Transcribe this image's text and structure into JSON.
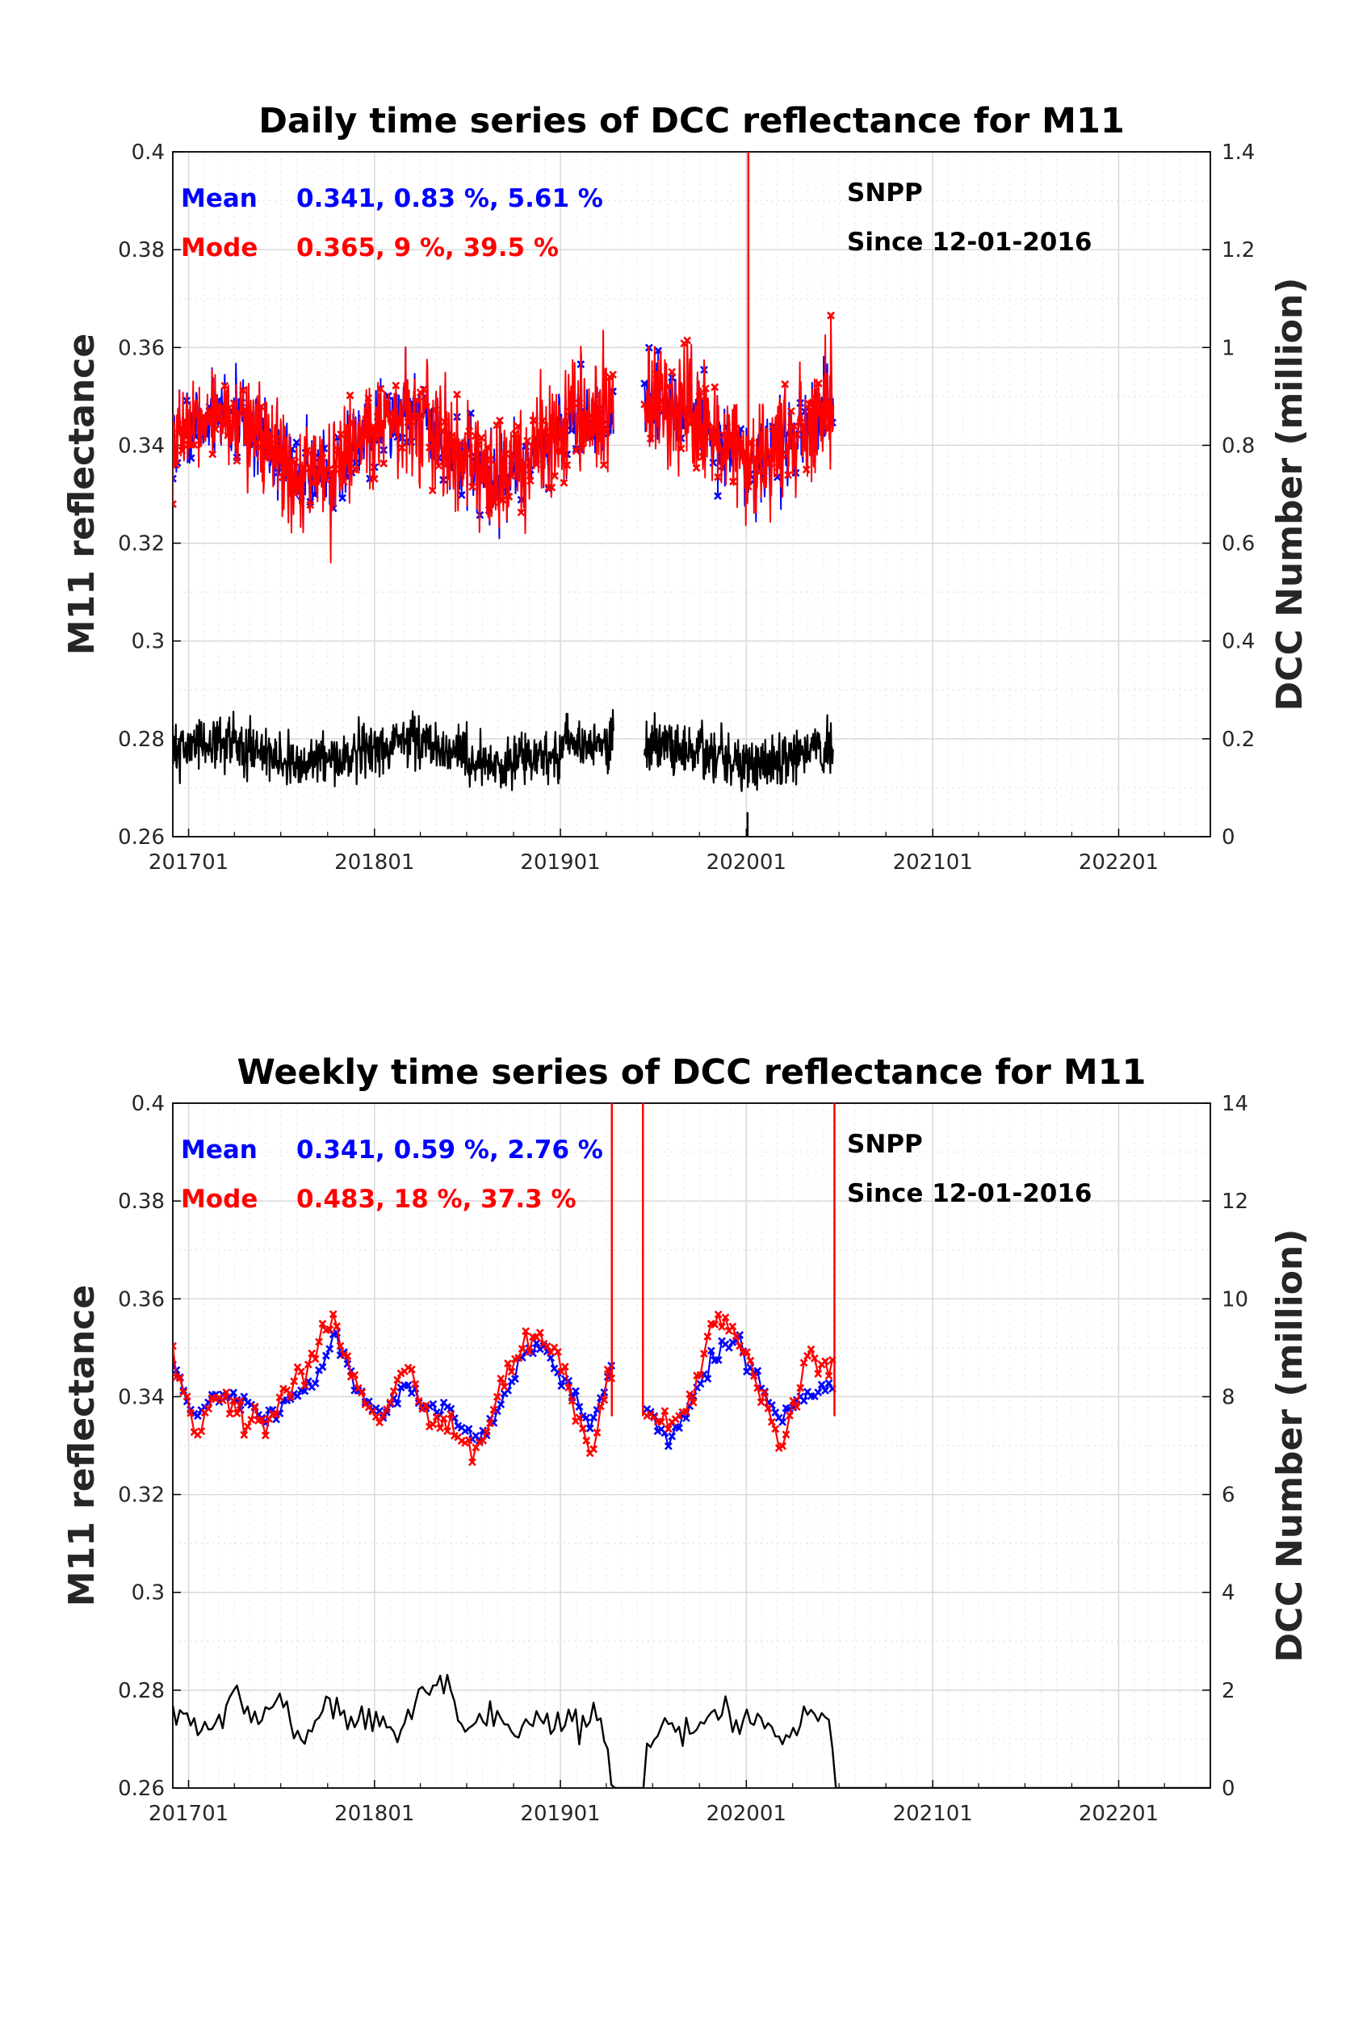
{
  "chart_data": [
    {
      "type": "line",
      "title": "Daily time series of DCC reflectance for M11",
      "ylabel": "M11 reflectance",
      "y2label": "DCC Number (million)",
      "ylim": [
        0.26,
        0.4
      ],
      "y2lim": [
        0,
        1.4
      ],
      "yticks": [
        "0.26",
        "0.28",
        "0.3",
        "0.32",
        "0.34",
        "0.36",
        "0.38",
        "0.4"
      ],
      "y2ticks": [
        "0",
        "0.2",
        "0.4",
        "0.6",
        "0.8",
        "1",
        "1.2",
        "1.4"
      ],
      "xlim": [
        "2016-12-01",
        "2022-06-30"
      ],
      "xticks": [
        "201701",
        "201801",
        "201901",
        "202001",
        "202101",
        "202201"
      ],
      "grid": true,
      "stats": {
        "mean_label": "Mean",
        "mean_values": "0.341, 0.83 %, 5.61 %",
        "mode_label": "Mode",
        "mode_values": "0.365, 9 %, 39.5 %",
        "satellite": "SNPP",
        "since": "Since 12-01-2016"
      },
      "series_style": [
        {
          "role": "mean",
          "color": "#0000ff",
          "axis": "left",
          "marker": "x"
        },
        {
          "role": "mode",
          "color": "#ff0000",
          "axis": "left",
          "marker": "x"
        },
        {
          "role": "dcc_number",
          "color": "#000000",
          "axis": "right",
          "marker": "none"
        }
      ],
      "segments": [
        {
          "start": "2016-12-01",
          "end": "2019-04-15",
          "mean_level": 0.34,
          "mean_spread": 0.012,
          "dcc_level": 0.17,
          "dcc_spread": 0.07
        },
        {
          "start": "2019-06-15",
          "end": "2020-06-20",
          "mean_level": 0.343,
          "mean_spread": 0.013,
          "dcc_level": 0.17,
          "dcc_spread": 0.07
        }
      ],
      "mode_spike": {
        "date": "2020-01-05",
        "value": 0.41
      }
    },
    {
      "type": "line",
      "title": "Weekly time series of DCC reflectance for M11",
      "ylabel": "M11 reflectance",
      "y2label": "DCC Number (million)",
      "ylim": [
        0.26,
        0.4
      ],
      "y2lim": [
        0,
        14
      ],
      "yticks": [
        "0.26",
        "0.28",
        "0.3",
        "0.32",
        "0.34",
        "0.36",
        "0.38",
        "0.4"
      ],
      "y2ticks": [
        "0",
        "2",
        "4",
        "6",
        "8",
        "10",
        "12",
        "14"
      ],
      "xlim": [
        "2016-12-01",
        "2022-06-30"
      ],
      "xticks": [
        "201701",
        "201801",
        "201901",
        "202001",
        "202101",
        "202201"
      ],
      "grid": true,
      "stats": {
        "mean_label": "Mean",
        "mean_values": "0.341, 0.59 %, 2.76 %",
        "mode_label": "Mode",
        "mode_values": "0.483, 18 %, 37.3 %",
        "satellite": "SNPP",
        "since": "Since 12-01-2016"
      },
      "series_style": [
        {
          "role": "mean",
          "color": "#0000ff",
          "axis": "left",
          "marker": "x"
        },
        {
          "role": "mode",
          "color": "#ff0000",
          "axis": "left",
          "marker": "x"
        },
        {
          "role": "dcc_number",
          "color": "#000000",
          "axis": "right",
          "marker": "none"
        }
      ],
      "mean": [
        {
          "x": "2016-12-01",
          "y": 0.347
        },
        {
          "x": "2017-01-15",
          "y": 0.336
        },
        {
          "x": "2017-03-01",
          "y": 0.341
        },
        {
          "x": "2017-04-15",
          "y": 0.338
        },
        {
          "x": "2017-06-01",
          "y": 0.335
        },
        {
          "x": "2017-07-15",
          "y": 0.34
        },
        {
          "x": "2017-09-01",
          "y": 0.342
        },
        {
          "x": "2017-10-15",
          "y": 0.353
        },
        {
          "x": "2017-12-01",
          "y": 0.342
        },
        {
          "x": "2018-01-15",
          "y": 0.336
        },
        {
          "x": "2018-03-01",
          "y": 0.342
        },
        {
          "x": "2018-04-15",
          "y": 0.338
        },
        {
          "x": "2018-06-01",
          "y": 0.337
        },
        {
          "x": "2018-07-15",
          "y": 0.331
        },
        {
          "x": "2018-09-01",
          "y": 0.337
        },
        {
          "x": "2018-10-15",
          "y": 0.349
        },
        {
          "x": "2018-12-01",
          "y": 0.35
        },
        {
          "x": "2019-01-15",
          "y": 0.343
        },
        {
          "x": "2019-03-01",
          "y": 0.333
        },
        {
          "x": "2019-04-10",
          "y": 0.345
        },
        {
          "x": "2019-06-15",
          "y": 0.338
        },
        {
          "x": "2019-08-01",
          "y": 0.331
        },
        {
          "x": "2019-09-15",
          "y": 0.339
        },
        {
          "x": "2019-11-01",
          "y": 0.349
        },
        {
          "x": "2019-12-15",
          "y": 0.352
        },
        {
          "x": "2020-02-01",
          "y": 0.34
        },
        {
          "x": "2020-03-15",
          "y": 0.336
        },
        {
          "x": "2020-05-01",
          "y": 0.341
        },
        {
          "x": "2020-06-20",
          "y": 0.342
        }
      ],
      "mode": [
        {
          "x": "2016-12-01",
          "y": 0.349
        },
        {
          "x": "2017-01-15",
          "y": 0.333
        },
        {
          "x": "2017-03-01",
          "y": 0.341
        },
        {
          "x": "2017-04-15",
          "y": 0.336
        },
        {
          "x": "2017-06-01",
          "y": 0.335
        },
        {
          "x": "2017-07-15",
          "y": 0.341
        },
        {
          "x": "2017-09-01",
          "y": 0.348
        },
        {
          "x": "2017-10-15",
          "y": 0.357
        },
        {
          "x": "2017-12-01",
          "y": 0.34
        },
        {
          "x": "2018-01-15",
          "y": 0.335
        },
        {
          "x": "2018-03-01",
          "y": 0.346
        },
        {
          "x": "2018-04-15",
          "y": 0.337
        },
        {
          "x": "2018-06-01",
          "y": 0.334
        },
        {
          "x": "2018-07-15",
          "y": 0.329
        },
        {
          "x": "2018-09-01",
          "y": 0.339
        },
        {
          "x": "2018-10-15",
          "y": 0.352
        },
        {
          "x": "2018-12-01",
          "y": 0.351
        },
        {
          "x": "2019-01-15",
          "y": 0.343
        },
        {
          "x": "2019-03-01",
          "y": 0.328
        },
        {
          "x": "2019-04-10",
          "y": 0.345
        },
        {
          "x": "2019-06-15",
          "y": 0.337
        },
        {
          "x": "2019-08-01",
          "y": 0.335
        },
        {
          "x": "2019-09-15",
          "y": 0.339
        },
        {
          "x": "2019-11-01",
          "y": 0.356
        },
        {
          "x": "2019-12-15",
          "y": 0.353
        },
        {
          "x": "2020-02-01",
          "y": 0.339
        },
        {
          "x": "2020-03-15",
          "y": 0.331
        },
        {
          "x": "2020-05-01",
          "y": 0.349
        },
        {
          "x": "2020-06-20",
          "y": 0.344
        }
      ],
      "mode_spikes": [
        "2019-04-12",
        "2019-06-12",
        "2020-06-22"
      ],
      "dcc_number": [
        {
          "x": "2016-12-01",
          "y": 1.5
        },
        {
          "x": "2017-02-15",
          "y": 1.2
        },
        {
          "x": "2017-04-01",
          "y": 1.9
        },
        {
          "x": "2017-05-15",
          "y": 1.4
        },
        {
          "x": "2017-07-01",
          "y": 1.7
        },
        {
          "x": "2017-08-15",
          "y": 1.0
        },
        {
          "x": "2017-10-01",
          "y": 1.8
        },
        {
          "x": "2017-11-15",
          "y": 1.4
        },
        {
          "x": "2018-01-01",
          "y": 1.4
        },
        {
          "x": "2018-02-15",
          "y": 1.0
        },
        {
          "x": "2018-04-01",
          "y": 2.0
        },
        {
          "x": "2018-05-15",
          "y": 2.2
        },
        {
          "x": "2018-07-01",
          "y": 1.2
        },
        {
          "x": "2018-08-15",
          "y": 1.6
        },
        {
          "x": "2018-10-01",
          "y": 1.1
        },
        {
          "x": "2018-11-15",
          "y": 1.5
        },
        {
          "x": "2019-01-01",
          "y": 1.4
        },
        {
          "x": "2019-02-15",
          "y": 1.2
        },
        {
          "x": "2019-03-20",
          "y": 1.5
        },
        {
          "x": "2019-04-12",
          "y": 0
        },
        {
          "x": "2019-06-12",
          "y": 0
        },
        {
          "x": "2019-06-15",
          "y": 1.0
        },
        {
          "x": "2019-08-01",
          "y": 1.3
        },
        {
          "x": "2019-09-15",
          "y": 1.1
        },
        {
          "x": "2019-11-01",
          "y": 1.6
        },
        {
          "x": "2019-12-15",
          "y": 1.4
        },
        {
          "x": "2020-02-01",
          "y": 1.4
        },
        {
          "x": "2020-03-15",
          "y": 1.1
        },
        {
          "x": "2020-05-01",
          "y": 1.6
        },
        {
          "x": "2020-06-15",
          "y": 1.3
        },
        {
          "x": "2020-06-22",
          "y": 0
        },
        {
          "x": "2022-06-30",
          "y": 0
        }
      ]
    }
  ]
}
